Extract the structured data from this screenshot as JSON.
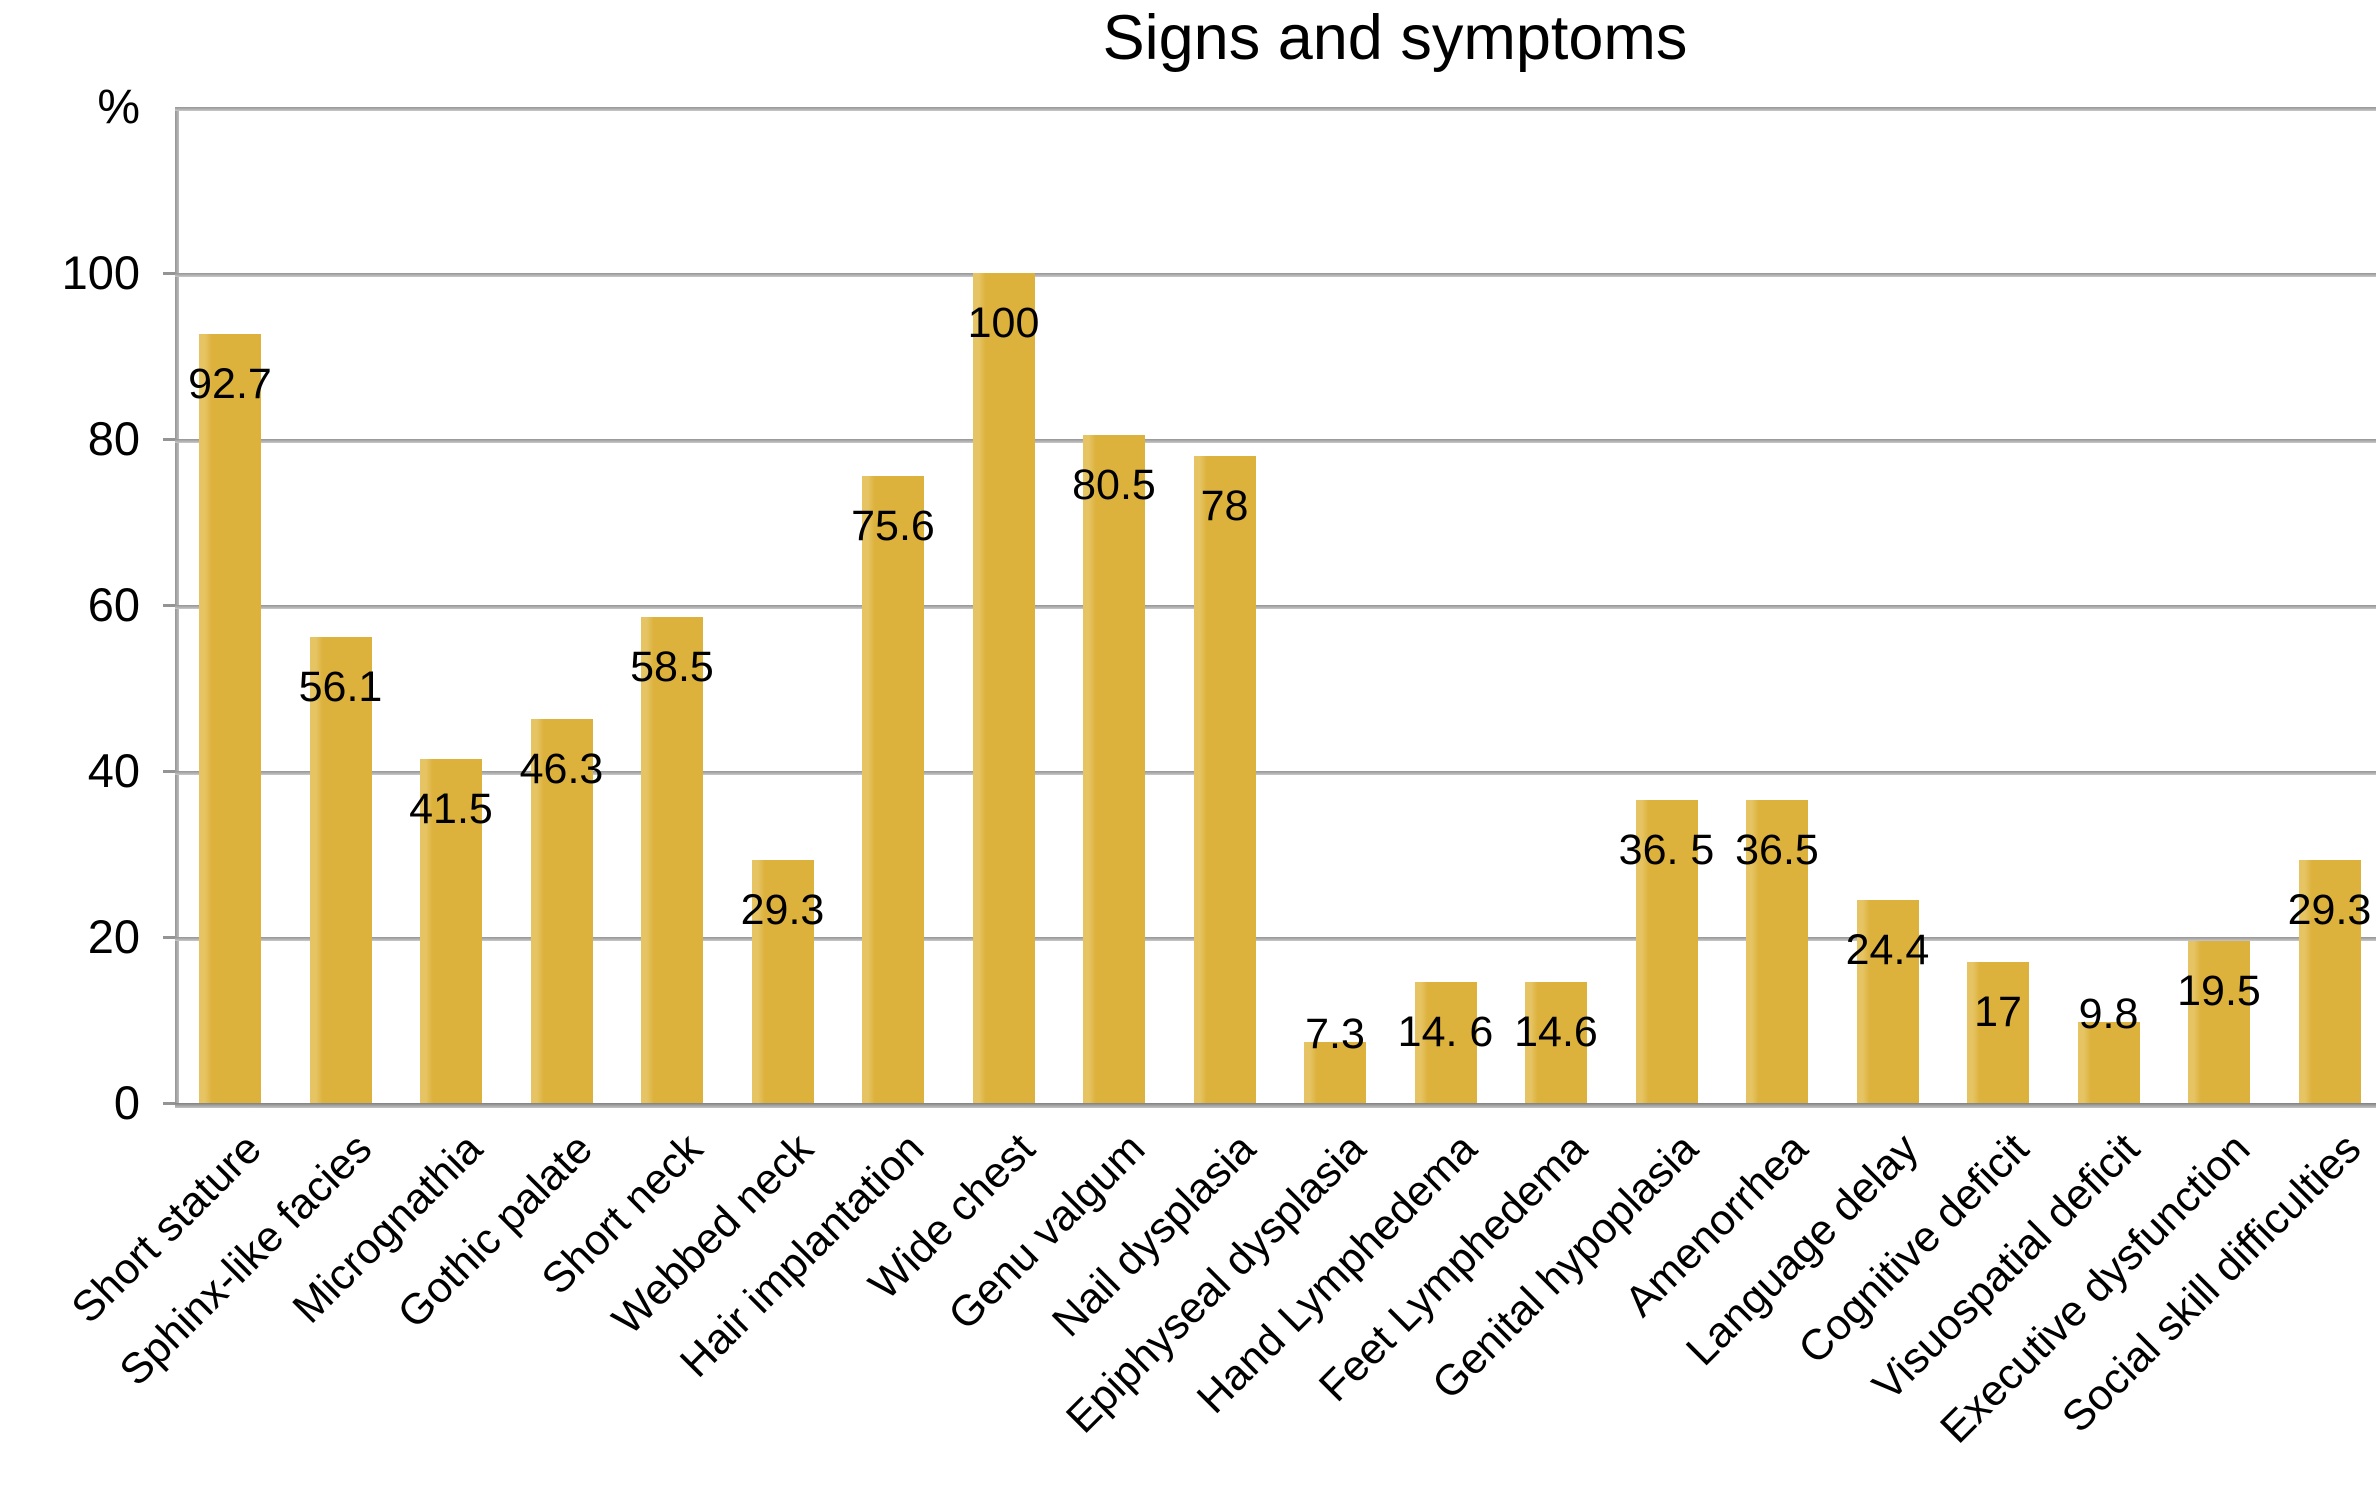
{
  "chart_data": {
    "type": "bar",
    "title": "Signs and symptoms",
    "ylabel": "%",
    "xlabel": "",
    "categories": [
      "Short stature",
      "Sphinx-like facies",
      "Micrognathia",
      "Gothic palate",
      "Short neck",
      "Webbed neck",
      "Hair implantation",
      "Wide chest",
      "Genu valgum",
      "Nail dysplasia",
      "Epiphyseal dysplasia",
      "Hand Lymphedema",
      "Feet Lymphedema",
      "Genital hypoplasia",
      "Amenorrhea",
      "Language delay",
      "Cognitive deficit",
      "Visuospatial deficit",
      "Executive dysfunction",
      "Social skill difficulties"
    ],
    "values": [
      92.7,
      56.1,
      41.5,
      46.3,
      58.5,
      29.3,
      75.6,
      100,
      80.5,
      78,
      7.3,
      14.6,
      14.6,
      36.5,
      36.5,
      24.4,
      17,
      9.8,
      19.5,
      29.3
    ],
    "value_labels": [
      "92.7",
      "56.1",
      "41.5",
      "46.3",
      "58.5",
      "29.3",
      "75.6",
      "100",
      "80.5",
      "78",
      "7.3",
      "14. 6",
      "14.6",
      "36. 5",
      "36.5",
      "24.4",
      "17",
      "9.8",
      "19.5",
      "29.3"
    ],
    "yticks": [
      0,
      20,
      40,
      60,
      80,
      100
    ],
    "ylim": [
      0,
      120
    ],
    "grid": true,
    "legend": false,
    "bar_color": "#dcb13c",
    "gridline_color": "#949494",
    "text_color": "#000000",
    "background_color": "#ffffff"
  }
}
